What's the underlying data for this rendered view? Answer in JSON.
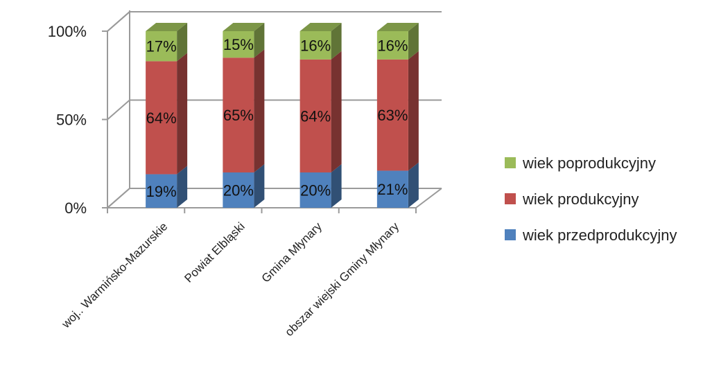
{
  "chart_data": {
    "type": "bar",
    "stacked": "percent",
    "three_d": true,
    "categories": [
      "woj.. Warmińsko-Mazurskie",
      "Powiat Elbląski",
      "Gmina Młynary",
      "obszar wiejski Gminy Młynary"
    ],
    "series": [
      {
        "name": "wiek przedprodukcyjny",
        "values": [
          19,
          20,
          20,
          21
        ],
        "labels": [
          "19%",
          "20%",
          "20%",
          "21%"
        ],
        "color": "#4F81BD"
      },
      {
        "name": "wiek produkcyjny",
        "values": [
          64,
          65,
          64,
          63
        ],
        "labels": [
          "64%",
          "65%",
          "64%",
          "63%"
        ],
        "color": "#C0504D"
      },
      {
        "name": "wiek poprodukcyjny",
        "values": [
          17,
          15,
          16,
          16
        ],
        "labels": [
          "17%",
          "15%",
          "16%",
          "16%"
        ],
        "color": "#9BBB59"
      }
    ],
    "yticks": [
      "0%",
      "50%",
      "100%"
    ],
    "ylim": [
      0,
      100
    ],
    "gridlines": true,
    "legend_position": "right",
    "legend_order": [
      "wiek poprodukcyjny",
      "wiek produkcyjny",
      "wiek przedprodukcyjny"
    ]
  }
}
